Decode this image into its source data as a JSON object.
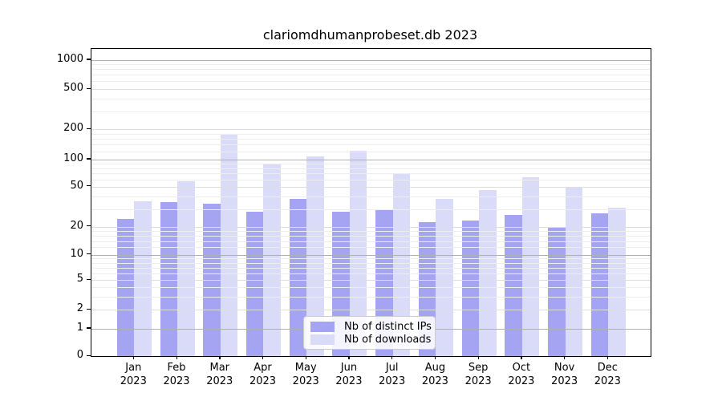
{
  "title": "clariomdhumanprobeset.db 2023",
  "chart_data": {
    "type": "bar",
    "title": "clariomdhumanprobeset.db 2023",
    "categories": [
      "Jan",
      "Feb",
      "Mar",
      "Apr",
      "May",
      "Jun",
      "Jul",
      "Aug",
      "Sep",
      "Oct",
      "Nov",
      "Dec"
    ],
    "year": "2023",
    "series": [
      {
        "name": "Nb of distinct IPs",
        "color": "#a4a4f2",
        "values": [
          24,
          35,
          34,
          28,
          38,
          28,
          30,
          22,
          23,
          26,
          20,
          27
        ]
      },
      {
        "name": "Nb of downloads",
        "color": "#dadaf9",
        "values": [
          36,
          57,
          180,
          89,
          108,
          122,
          70,
          38,
          46,
          63,
          49,
          31
        ]
      }
    ],
    "yscale": "symlog",
    "yticks": [
      0,
      1,
      2,
      5,
      10,
      20,
      50,
      100,
      200,
      500,
      1000
    ],
    "ylim": [
      0,
      1400
    ],
    "grid": true,
    "legend_position": "lower-center"
  },
  "legend": {
    "items": [
      {
        "label": "Nb of distinct IPs",
        "color": "#a4a4f2"
      },
      {
        "label": "Nb of downloads",
        "color": "#dadaf9"
      }
    ]
  }
}
